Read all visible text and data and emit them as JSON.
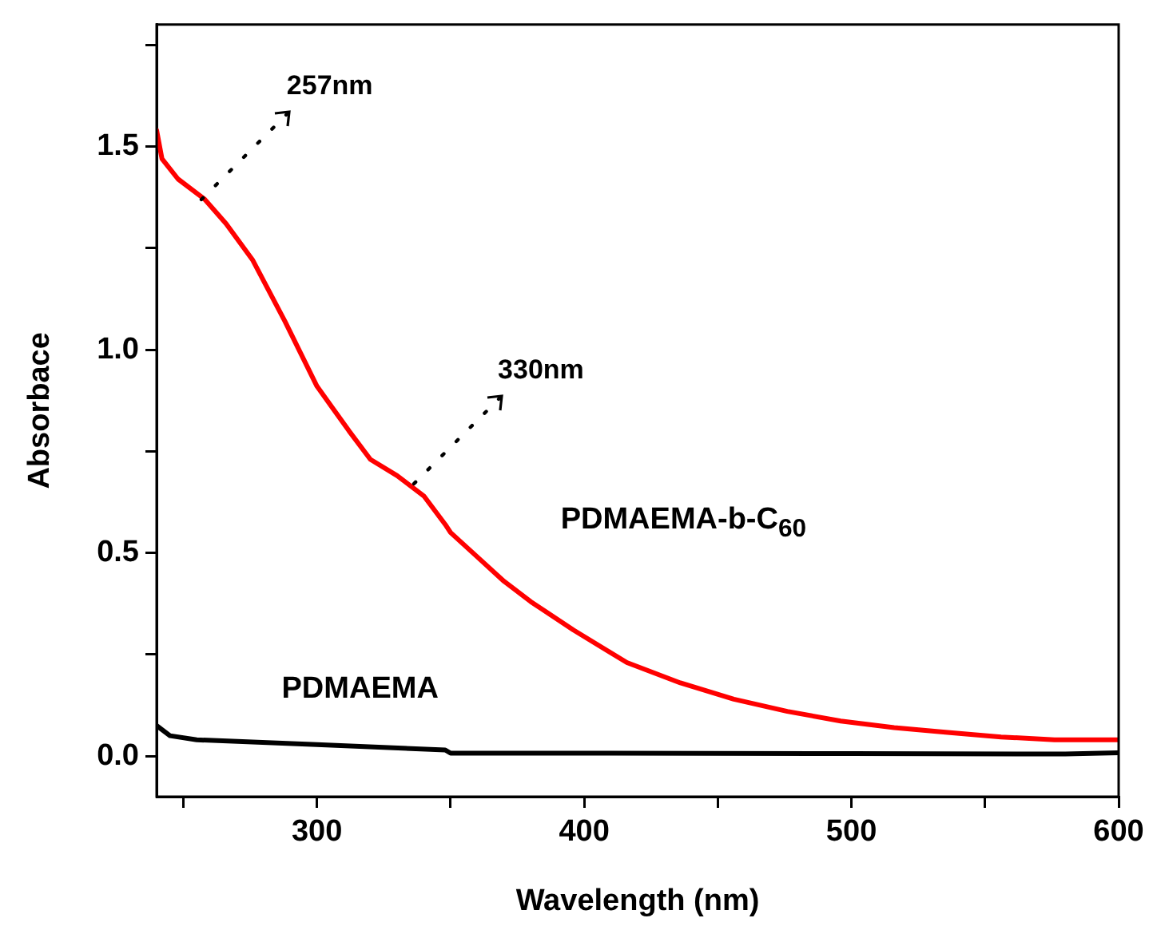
{
  "chart_data": {
    "type": "line",
    "xlabel": "Wavelength (nm)",
    "ylabel": "Absorbace",
    "xlim": [
      240,
      600
    ],
    "ylim": [
      -0.1,
      1.8
    ],
    "xticks": [
      {
        "value": 250,
        "label": null
      },
      300,
      {
        "value": 350,
        "label": null
      },
      400,
      {
        "value": 450,
        "label": null
      },
      500,
      {
        "value": 550,
        "label": null
      },
      600
    ],
    "yticks": [
      {
        "value": 0,
        "label": "0.0"
      },
      {
        "value": 0.25,
        "label": null
      },
      0.5,
      {
        "value": 0.75,
        "label": null
      },
      {
        "value": 1,
        "label": "1.0"
      },
      {
        "value": 1.25,
        "label": null
      },
      1.5,
      {
        "value": 1.75,
        "label": null
      }
    ],
    "grid": false,
    "legend": false,
    "marker": "none",
    "line_style": "solid",
    "series": [
      {
        "name": "PDMAEMA-b-C$_{60}$",
        "color": "#ff0000",
        "x": [
          240,
          242,
          248,
          258,
          266,
          276,
          288,
          300,
          312,
          320,
          330,
          340,
          348,
          350,
          360,
          370,
          380,
          396,
          416,
          436,
          456,
          476,
          496,
          516,
          536,
          556,
          576,
          600
        ],
        "values": [
          1.54,
          1.47,
          1.42,
          1.37,
          1.31,
          1.22,
          1.07,
          0.91,
          0.8,
          0.73,
          0.69,
          0.64,
          0.57,
          0.55,
          0.49,
          0.43,
          0.38,
          0.31,
          0.23,
          0.18,
          0.14,
          0.11,
          0.086,
          0.07,
          0.058,
          0.047,
          0.04,
          0.04
        ]
      },
      {
        "name": "PDMAEMA",
        "color": "#000000",
        "x": [
          240,
          245,
          255,
          300,
          348,
          350,
          400,
          500,
          580,
          600
        ],
        "values": [
          0.075,
          0.05,
          0.04,
          0.028,
          0.015,
          0.007,
          0.007,
          0.006,
          0.005,
          0.008
        ]
      }
    ],
    "annotations": [
      {
        "text": "257nm",
        "x": 257,
        "y": 1.37
      },
      {
        "text": "330nm",
        "x": 336,
        "y": 0.67
      }
    ]
  }
}
